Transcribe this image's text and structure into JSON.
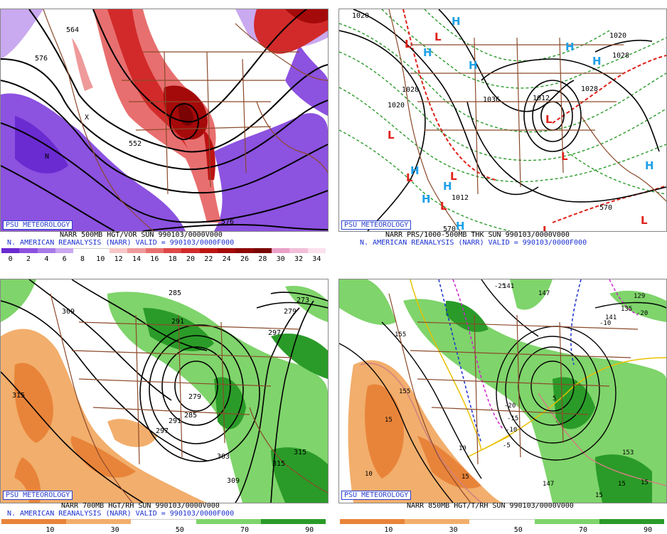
{
  "panels": {
    "tl": {
      "psu": "PSU METEOROLOGY",
      "line1": "NARR 500MB HGT/VOR SUN 990103/0000V000",
      "line2": "N. AMERICAN REANALYSIS (NARR) VALID = 990103/0000F000",
      "contour_labels": [
        "564",
        "576",
        "552",
        "576",
        "N",
        "X"
      ],
      "colorbar": {
        "ticks": [
          "0",
          "2",
          "4",
          "6",
          "8",
          "10",
          "12",
          "14",
          "16",
          "18",
          "20",
          "22",
          "24",
          "26",
          "28",
          "30",
          "32",
          "34"
        ],
        "colors": [
          "#6a2bd0",
          "#8c52e0",
          "#a87ae8",
          "#c9a9ef",
          "#ffffff",
          "#ffffff",
          "#f7c7c7",
          "#ef9a9a",
          "#e86f6f",
          "#de4747",
          "#d22a2a",
          "#bd1414",
          "#a50a0a",
          "#8e0505",
          "#7a0303",
          "#e9a0c8",
          "#f2bfd9",
          "#fbe0ee"
        ]
      }
    },
    "tr": {
      "psu": "PSU METEOROLOGY",
      "line1": "NARR PRS/1000-500MB THK SUN 990103/0000V000",
      "line2": "N. AMERICAN REANALYSIS (NARR) VALID = 990103/0000F000",
      "labels": [
        "1020",
        "1028",
        "1020",
        "1036",
        "1012",
        "1028",
        "1020",
        "570",
        "1012",
        "1028",
        "570"
      ],
      "highs": [
        "H",
        "H",
        "H",
        "H",
        "H",
        "H",
        "H",
        "H",
        "H",
        "H"
      ],
      "lows": [
        "L",
        "L",
        "L",
        "L",
        "L",
        "L",
        "L",
        "L",
        "L",
        "L"
      ]
    },
    "bl": {
      "psu": "PSU METEOROLOGY",
      "line1": "NARR 700MB HGT/RH SUN 990103/0000V000",
      "line2": "N. AMERICAN REANALYSIS (NARR) VALID = 990103/0000F000",
      "contour_labels": [
        "309",
        "285",
        "291",
        "273",
        "279",
        "297",
        "315",
        "279",
        "285",
        "297",
        "291",
        "303",
        "309",
        "315",
        "315"
      ],
      "colorbar": {
        "ticks": [
          "10",
          "30",
          "50",
          "70",
          "90"
        ],
        "colors": [
          "#e8843a",
          "#f2ae6c",
          "#ffffff",
          "#7fd46b",
          "#2a9b28"
        ]
      }
    },
    "br": {
      "psu": "PSU METEOROLOGY",
      "line1": "NARR 850MB HGT/T/RH SUN 990103/0000V000",
      "line2": "",
      "contour_labels": [
        "155",
        "141",
        "147",
        "129",
        "135",
        "141",
        "155",
        "15",
        "-20",
        "-15",
        "-10",
        "5",
        "-5",
        "10",
        "10",
        "15",
        "153",
        "147",
        "15",
        "15",
        "15",
        "-25",
        "-10",
        "-20"
      ],
      "colorbar": {
        "ticks": [
          "10",
          "30",
          "50",
          "70",
          "90"
        ],
        "colors": [
          "#e8843a",
          "#f2ae6c",
          "#ffffff",
          "#7fd46b",
          "#2a9b28"
        ]
      }
    }
  },
  "colors": {
    "coast": "#8b4a2b",
    "contour": "#000000",
    "caption_blue": "#1a2fcf",
    "high": "#1ea0e6",
    "low": "#e0201a"
  }
}
